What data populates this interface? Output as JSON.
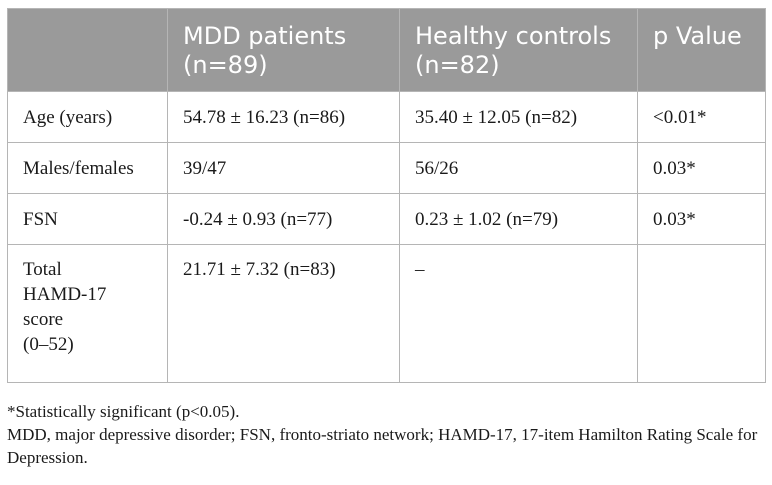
{
  "table": {
    "headers": [
      "",
      "MDD patients (n=89)",
      "Healthy controls (n=82)",
      "p Value"
    ],
    "rows": [
      {
        "label": "Age (years)",
        "mdd": "54.78 ± 16.23 (n=86)",
        "hc": "35.40 ± 12.05 (n=82)",
        "p": "<0.01*"
      },
      {
        "label": "Males/females",
        "mdd": "39/47",
        "hc": "56/26",
        "p": "0.03*"
      },
      {
        "label": "FSN",
        "mdd": "-0.24 ± 0.93 (n=77)",
        "hc": "0.23 ± 1.02 (n=79)",
        "p": "0.03*"
      },
      {
        "label_lines": [
          "Total",
          "HAMD-17",
          "score",
          "(0–52)"
        ],
        "mdd": "21.71 ± 7.32 (n=83)",
        "hc": "–",
        "p": ""
      }
    ]
  },
  "notes": {
    "significance": "*Statistically significant (p<0.05).",
    "abbreviations": "MDD, major depressive disorder; FSN, fronto-striato network; HAMD-17, 17-item Hamilton Rating Scale for Depression."
  },
  "colors": {
    "header_background": "#9a9a9a",
    "header_text": "#ffffff",
    "border": "#b5b5b5"
  }
}
